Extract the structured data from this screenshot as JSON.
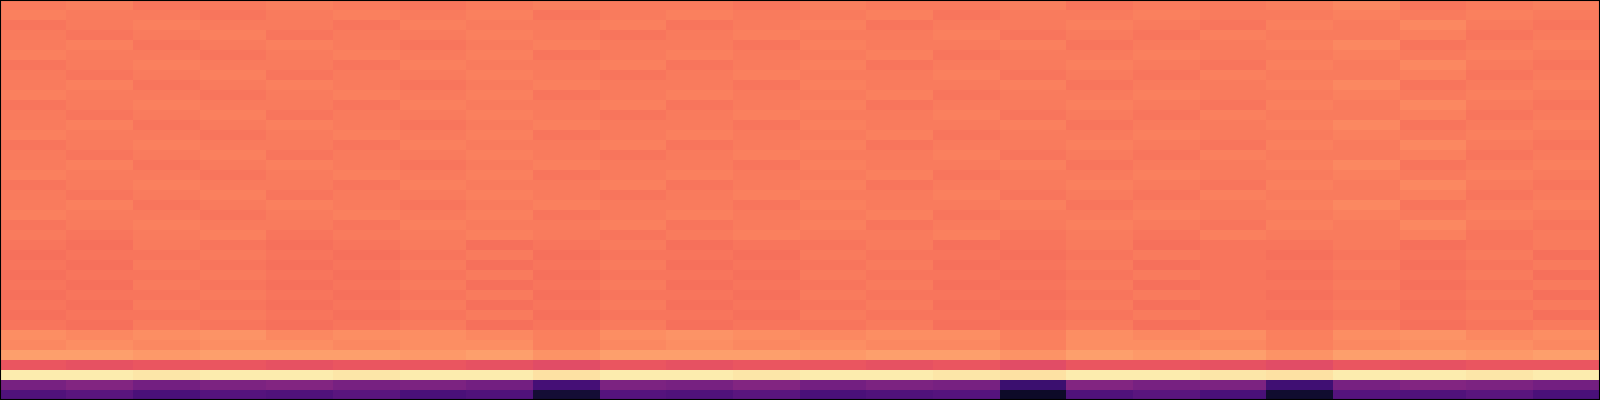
{
  "chart_data": {
    "type": "heatmap",
    "tick_labels": false,
    "zlim": [
      -80,
      0
    ],
    "cells": [
      [
        -22,
        -21,
        -23,
        -22,
        -21,
        -22,
        -23,
        -22,
        -21,
        -22,
        -22,
        -23,
        -21,
        -22,
        -22,
        -21,
        -23,
        -22,
        -22,
        -21,
        -20,
        -23,
        -22,
        -21
      ],
      [
        -21,
        -22,
        -22,
        -23,
        -22,
        -21,
        -22,
        -21,
        -23,
        -22,
        -21,
        -22,
        -22,
        -21,
        -23,
        -22,
        -22,
        -21,
        -22,
        -22,
        -21,
        -22,
        -21,
        -22
      ],
      [
        -23,
        -22,
        -21,
        -22,
        -22,
        -23,
        -21,
        -22,
        -22,
        -21,
        -23,
        -22,
        -21,
        -23,
        -22,
        -22,
        -21,
        -22,
        -23,
        -21,
        -22,
        -20,
        -22,
        -23
      ],
      [
        -22,
        -23,
        -22,
        -21,
        -23,
        -22,
        -22,
        -21,
        -22,
        -23,
        -22,
        -21,
        -22,
        -22,
        -21,
        -23,
        -22,
        -23,
        -21,
        -22,
        -22,
        -21,
        -23,
        -22
      ],
      [
        -22,
        -21,
        -23,
        -22,
        -21,
        -22,
        -23,
        -22,
        -21,
        -22,
        -22,
        -23,
        -21,
        -22,
        -22,
        -21,
        -23,
        -22,
        -22,
        -21,
        -20,
        -23,
        -22,
        -21
      ],
      [
        -21,
        -22,
        -22,
        -23,
        -22,
        -21,
        -22,
        -21,
        -23,
        -22,
        -21,
        -22,
        -22,
        -21,
        -23,
        -22,
        -22,
        -21,
        -22,
        -22,
        -21,
        -22,
        -21,
        -22
      ],
      [
        -23,
        -22,
        -21,
        -22,
        -22,
        -23,
        -21,
        -22,
        -22,
        -21,
        -23,
        -22,
        -21,
        -23,
        -22,
        -22,
        -21,
        -22,
        -23,
        -21,
        -22,
        -20,
        -22,
        -23
      ],
      [
        -22,
        -23,
        -22,
        -21,
        -23,
        -22,
        -22,
        -21,
        -22,
        -23,
        -22,
        -21,
        -22,
        -22,
        -21,
        -23,
        -22,
        -23,
        -21,
        -22,
        -22,
        -21,
        -23,
        -22
      ],
      [
        -22,
        -21,
        -23,
        -22,
        -21,
        -22,
        -23,
        -22,
        -21,
        -22,
        -22,
        -23,
        -21,
        -22,
        -22,
        -21,
        -23,
        -22,
        -22,
        -21,
        -20,
        -23,
        -22,
        -21
      ],
      [
        -21,
        -22,
        -22,
        -23,
        -22,
        -21,
        -22,
        -21,
        -23,
        -22,
        -21,
        -22,
        -22,
        -21,
        -23,
        -22,
        -22,
        -21,
        -22,
        -22,
        -21,
        -22,
        -21,
        -22
      ],
      [
        -23,
        -22,
        -21,
        -22,
        -22,
        -23,
        -21,
        -22,
        -22,
        -21,
        -23,
        -22,
        -21,
        -23,
        -22,
        -22,
        -21,
        -22,
        -23,
        -21,
        -22,
        -20,
        -22,
        -23
      ],
      [
        -22,
        -23,
        -22,
        -21,
        -23,
        -22,
        -22,
        -21,
        -22,
        -23,
        -22,
        -21,
        -22,
        -22,
        -21,
        -23,
        -22,
        -23,
        -21,
        -22,
        -22,
        -21,
        -23,
        -22
      ],
      [
        -22,
        -21,
        -23,
        -22,
        -21,
        -22,
        -23,
        -22,
        -21,
        -22,
        -22,
        -23,
        -21,
        -22,
        -22,
        -21,
        -23,
        -22,
        -22,
        -21,
        -20,
        -23,
        -22,
        -21
      ],
      [
        -21,
        -22,
        -22,
        -23,
        -22,
        -21,
        -22,
        -21,
        -23,
        -22,
        -21,
        -22,
        -22,
        -21,
        -23,
        -22,
        -22,
        -21,
        -22,
        -22,
        -21,
        -22,
        -21,
        -22
      ],
      [
        -23,
        -22,
        -21,
        -22,
        -22,
        -23,
        -21,
        -22,
        -22,
        -21,
        -23,
        -22,
        -21,
        -23,
        -22,
        -22,
        -21,
        -22,
        -23,
        -21,
        -22,
        -20,
        -22,
        -23
      ],
      [
        -22,
        -23,
        -22,
        -21,
        -23,
        -22,
        -22,
        -21,
        -22,
        -23,
        -22,
        -21,
        -22,
        -22,
        -21,
        -23,
        -22,
        -23,
        -21,
        -22,
        -22,
        -21,
        -23,
        -22
      ],
      [
        -22,
        -21,
        -23,
        -22,
        -21,
        -22,
        -23,
        -22,
        -21,
        -22,
        -22,
        -23,
        -21,
        -22,
        -22,
        -21,
        -23,
        -22,
        -22,
        -21,
        -20,
        -23,
        -22,
        -21
      ],
      [
        -21,
        -22,
        -22,
        -23,
        -22,
        -21,
        -22,
        -21,
        -23,
        -22,
        -21,
        -22,
        -22,
        -21,
        -23,
        -22,
        -22,
        -21,
        -22,
        -22,
        -21,
        -22,
        -21,
        -22
      ],
      [
        -23,
        -22,
        -21,
        -22,
        -22,
        -23,
        -21,
        -22,
        -22,
        -21,
        -23,
        -22,
        -21,
        -23,
        -22,
        -22,
        -21,
        -22,
        -23,
        -21,
        -22,
        -20,
        -22,
        -23
      ],
      [
        -22,
        -23,
        -22,
        -21,
        -23,
        -22,
        -22,
        -21,
        -22,
        -23,
        -22,
        -21,
        -22,
        -22,
        -21,
        -23,
        -22,
        -23,
        -21,
        -22,
        -22,
        -21,
        -23,
        -22
      ],
      [
        -22,
        -21,
        -23,
        -22,
        -21,
        -22,
        -23,
        -22,
        -21,
        -22,
        -22,
        -23,
        -21,
        -22,
        -22,
        -21,
        -23,
        -22,
        -22,
        -21,
        -20,
        -23,
        -22,
        -21
      ],
      [
        -21,
        -22,
        -22,
        -23,
        -22,
        -21,
        -22,
        -21,
        -23,
        -22,
        -21,
        -22,
        -22,
        -21,
        -23,
        -22,
        -22,
        -21,
        -22,
        -22,
        -21,
        -22,
        -21,
        -22
      ],
      [
        -23,
        -22,
        -21,
        -22,
        -22,
        -23,
        -21,
        -22,
        -22,
        -21,
        -23,
        -22,
        -21,
        -23,
        -22,
        -22,
        -21,
        -22,
        -23,
        -21,
        -22,
        -20,
        -22,
        -23
      ],
      [
        -22,
        -23,
        -22,
        -21,
        -23,
        -22,
        -22,
        -21,
        -22,
        -23,
        -22,
        -21,
        -22,
        -22,
        -21,
        -23,
        -22,
        -23,
        -21,
        -22,
        -22,
        -21,
        -23,
        -22
      ],
      [
        -23,
        -24,
        -22,
        -23,
        -24,
        -23,
        -22,
        -24,
        -23,
        -22,
        -24,
        -23,
        -23,
        -22,
        -24,
        -23,
        -22,
        -24,
        -23,
        -23,
        -22,
        -24,
        -23,
        -22
      ],
      [
        -24,
        -23,
        -23,
        -22,
        -23,
        -24,
        -23,
        -22,
        -24,
        -23,
        -23,
        -24,
        -22,
        -23,
        -23,
        -24,
        -23,
        -22,
        -23,
        -24,
        -23,
        -23,
        -22,
        -24
      ],
      [
        -23,
        -24,
        -22,
        -23,
        -24,
        -23,
        -22,
        -24,
        -23,
        -22,
        -24,
        -23,
        -23,
        -22,
        -24,
        -23,
        -22,
        -24,
        -23,
        -23,
        -22,
        -24,
        -23,
        -22
      ],
      [
        -24,
        -23,
        -23,
        -22,
        -23,
        -24,
        -23,
        -22,
        -24,
        -23,
        -23,
        -24,
        -22,
        -23,
        -23,
        -24,
        -23,
        -22,
        -23,
        -24,
        -23,
        -23,
        -22,
        -24
      ],
      [
        -23,
        -24,
        -22,
        -23,
        -24,
        -23,
        -22,
        -24,
        -23,
        -22,
        -24,
        -23,
        -23,
        -22,
        -24,
        -23,
        -22,
        -24,
        -23,
        -23,
        -22,
        -24,
        -23,
        -22
      ],
      [
        -24,
        -23,
        -23,
        -22,
        -23,
        -24,
        -23,
        -22,
        -24,
        -23,
        -23,
        -24,
        -22,
        -23,
        -23,
        -24,
        -23,
        -22,
        -23,
        -24,
        -23,
        -23,
        -22,
        -24
      ],
      [
        -23,
        -24,
        -22,
        -23,
        -24,
        -23,
        -22,
        -24,
        -23,
        -22,
        -24,
        -23,
        -23,
        -22,
        -24,
        -23,
        -22,
        -24,
        -23,
        -23,
        -22,
        -24,
        -23,
        -22
      ],
      [
        -24,
        -23,
        -23,
        -22,
        -23,
        -24,
        -23,
        -22,
        -24,
        -23,
        -23,
        -24,
        -22,
        -23,
        -23,
        -24,
        -23,
        -22,
        -23,
        -24,
        -23,
        -23,
        -22,
        -24
      ],
      [
        -23,
        -24,
        -22,
        -23,
        -24,
        -23,
        -22,
        -24,
        -23,
        -22,
        -24,
        -23,
        -23,
        -22,
        -24,
        -23,
        -22,
        -24,
        -23,
        -23,
        -22,
        -24,
        -23,
        -22
      ],
      [
        -19,
        -20,
        -19,
        -18,
        -20,
        -19,
        -19,
        -20,
        -21,
        -19,
        -18,
        -19,
        -20,
        -19,
        -19,
        -21,
        -19,
        -20,
        -19,
        -21,
        -19,
        -18,
        -20,
        -19
      ],
      [
        -20,
        -19,
        -20,
        -19,
        -19,
        -20,
        -19,
        -19,
        -21,
        -20,
        -19,
        -20,
        -19,
        -20,
        -20,
        -21,
        -19,
        -19,
        -20,
        -21,
        -20,
        -19,
        -19,
        -20
      ],
      [
        -16,
        -16,
        -17,
        -16,
        -16,
        -16,
        -17,
        -16,
        -18,
        -16,
        -16,
        -16,
        -17,
        -16,
        -16,
        -18,
        -16,
        -17,
        -16,
        -18,
        -16,
        -16,
        -17,
        -16
      ],
      [
        -29,
        -30,
        -29,
        -29,
        -30,
        -29,
        -29,
        -30,
        -31,
        -29,
        -30,
        -29,
        -29,
        -30,
        -29,
        -31,
        -29,
        -29,
        -30,
        -31,
        -29,
        -30,
        -29,
        -29
      ],
      [
        -3,
        -3,
        -4,
        -3,
        -3,
        -4,
        -3,
        -3,
        -5,
        -3,
        -3,
        -4,
        -3,
        -3,
        -4,
        -5,
        -3,
        -3,
        -4,
        -5,
        -3,
        -3,
        -4,
        -3
      ],
      [
        -52,
        -50,
        -53,
        -51,
        -50,
        -52,
        -51,
        -53,
        -62,
        -51,
        -52,
        -50,
        -53,
        -51,
        -52,
        -64,
        -50,
        -52,
        -51,
        -63,
        -52,
        -50,
        -51,
        -53
      ],
      [
        -60,
        -58,
        -61,
        -59,
        -60,
        -58,
        -61,
        -60,
        -72,
        -59,
        -60,
        -58,
        -61,
        -60,
        -59,
        -74,
        -60,
        -58,
        -61,
        -73,
        -59,
        -60,
        -58,
        -61
      ]
    ]
  }
}
